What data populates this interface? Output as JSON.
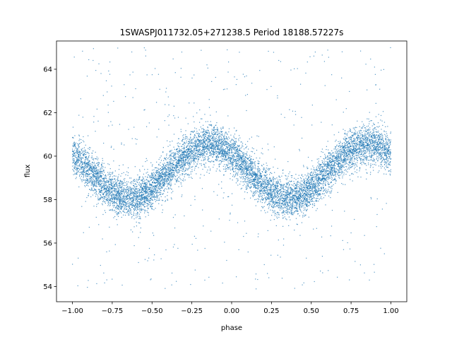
{
  "chart_data": {
    "type": "scatter",
    "title": "1SWASPJ011732.05+271238.5 Period 18188.57227s",
    "xlabel": "phase",
    "ylabel": "flux",
    "xlim": [
      -1.1,
      1.1
    ],
    "ylim": [
      53.3,
      65.3
    ],
    "x_ticks": [
      -1.0,
      -0.75,
      -0.5,
      -0.25,
      0.0,
      0.25,
      0.5,
      0.75,
      1.0
    ],
    "x_tick_labels": [
      "−1.00",
      "−0.75",
      "−0.50",
      "−0.25",
      "0.00",
      "0.25",
      "0.50",
      "0.75",
      "1.00"
    ],
    "y_ticks": [
      54,
      56,
      58,
      60,
      62,
      64
    ],
    "y_tick_labels": [
      "54",
      "56",
      "58",
      "60",
      "62",
      "64"
    ],
    "grid": false,
    "legend": "none",
    "series": [
      {
        "color": "#1f77b4",
        "model": "sinusoid",
        "mean_flux": 59.3,
        "amplitude": 1.25,
        "peak_phase": -0.14,
        "scatter_sigma": 0.45,
        "x_range": [
          -1.0,
          1.0
        ],
        "x": [
          -1.0,
          -0.9,
          -0.8,
          -0.7,
          -0.6,
          -0.5,
          -0.4,
          -0.3,
          -0.2,
          -0.1,
          0.0,
          0.1,
          0.2,
          0.3,
          0.4,
          0.5,
          0.6,
          0.7,
          0.8,
          0.9,
          1.0
        ],
        "y": [
          60.1,
          59.4,
          58.7,
          58.3,
          58.1,
          58.4,
          58.9,
          59.7,
          60.3,
          60.5,
          60.2,
          59.6,
          58.9,
          58.4,
          58.1,
          58.3,
          58.8,
          59.6,
          60.3,
          60.5,
          60.2
        ],
        "outlier_range": [
          53.8,
          65.0
        ]
      }
    ]
  }
}
